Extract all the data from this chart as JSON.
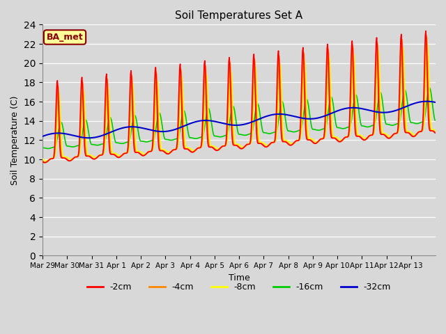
{
  "title": "Soil Temperatures Set A",
  "xlabel": "Time",
  "ylabel": "Soil Temperature (C)",
  "ylim": [
    0,
    24
  ],
  "yticks": [
    0,
    2,
    4,
    6,
    8,
    10,
    12,
    14,
    16,
    18,
    20,
    22,
    24
  ],
  "plot_bg_color": "#d8d8d8",
  "fig_bg_color": "#d8d8d8",
  "grid_color": "#ffffff",
  "annotation_text": "BA_met",
  "annotation_color": "#8b0000",
  "annotation_bg": "#ffff99",
  "series": {
    "neg2cm": {
      "color": "#ff0000",
      "label": "-2cm",
      "linewidth": 1.2,
      "zorder": 5
    },
    "neg4cm": {
      "color": "#ff8800",
      "label": "-4cm",
      "linewidth": 1.2,
      "zorder": 4
    },
    "neg8cm": {
      "color": "#ffff00",
      "label": "-8cm",
      "linewidth": 1.2,
      "zorder": 3
    },
    "neg16cm": {
      "color": "#00cc00",
      "label": "-16cm",
      "linewidth": 1.2,
      "zorder": 2
    },
    "neg32cm": {
      "color": "#0000cc",
      "label": "-32cm",
      "linewidth": 1.5,
      "zorder": 6
    }
  },
  "x_tick_labels": [
    "Mar 29",
    "Mar 30",
    "Mar 31",
    "Apr 1",
    "Apr 2",
    "Apr 3",
    "Apr 4",
    "Apr 5",
    "Apr 6",
    "Apr 7",
    "Apr 8",
    "Apr 9",
    "Apr 10",
    "Apr 11",
    "Apr 12",
    "Apr 13"
  ],
  "days": 16,
  "pts_per_day": 48
}
